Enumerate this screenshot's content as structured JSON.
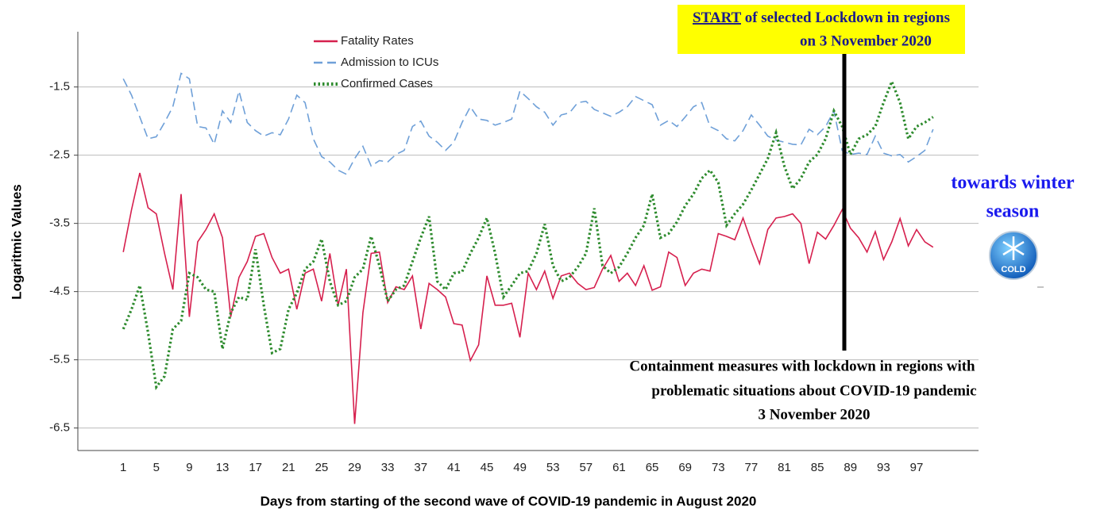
{
  "chart_data": {
    "type": "line",
    "xlabel": "Days from starting of the second wave of COVID-19 pandemic  in August 2020",
    "ylabel": "Logaritmic Values",
    "x": [
      1,
      2,
      3,
      4,
      5,
      6,
      7,
      8,
      9,
      10,
      11,
      12,
      13,
      14,
      15,
      16,
      17,
      18,
      19,
      20,
      21,
      22,
      23,
      24,
      25,
      26,
      27,
      28,
      29,
      30,
      31,
      32,
      33,
      34,
      35,
      36,
      37,
      38,
      39,
      40,
      41,
      42,
      43,
      44,
      45,
      46,
      47,
      48,
      49,
      50,
      51,
      52,
      53,
      54,
      55,
      56,
      57,
      58,
      59,
      60,
      61,
      62,
      63,
      64,
      65,
      66,
      67,
      68,
      69,
      70,
      71,
      72,
      73,
      74,
      75,
      76,
      77,
      78,
      79,
      80,
      81,
      82,
      83,
      84,
      85,
      86,
      87,
      88,
      89,
      90,
      91,
      92,
      93,
      94,
      95,
      96,
      97,
      98,
      99
    ],
    "xlim": [
      -4.5,
      104.5
    ],
    "xticks": [
      1,
      5,
      9,
      13,
      17,
      21,
      25,
      29,
      33,
      37,
      41,
      45,
      49,
      53,
      57,
      61,
      65,
      69,
      73,
      77,
      81,
      85,
      89,
      93,
      97
    ],
    "ylim": [
      -6.83,
      -0.69
    ],
    "yticks": [
      -1.5,
      -2.5,
      -3.5,
      -4.5,
      -5.5,
      -6.5
    ],
    "grid": true,
    "legend": "top-left",
    "series": [
      {
        "name": "Fatality Rates",
        "color": "#d6204e",
        "dash": "solid",
        "values": [
          -3.92,
          -3.3,
          -2.76,
          -3.27,
          -3.36,
          -3.94,
          -4.47,
          -3.07,
          -4.87,
          -3.77,
          -3.59,
          -3.36,
          -3.71,
          -4.87,
          -4.29,
          -4.06,
          -3.69,
          -3.65,
          -4.0,
          -4.23,
          -4.17,
          -4.76,
          -4.23,
          -4.17,
          -4.64,
          -3.94,
          -4.7,
          -4.17,
          -6.44,
          -4.81,
          -3.94,
          -3.92,
          -4.66,
          -4.43,
          -4.47,
          -4.27,
          -5.05,
          -4.38,
          -4.47,
          -4.58,
          -4.97,
          -4.99,
          -5.51,
          -5.28,
          -4.27,
          -4.7,
          -4.7,
          -4.67,
          -5.17,
          -4.23,
          -4.47,
          -4.2,
          -4.6,
          -4.27,
          -4.23,
          -4.38,
          -4.47,
          -4.44,
          -4.17,
          -3.97,
          -4.35,
          -4.23,
          -4.41,
          -4.12,
          -4.48,
          -4.43,
          -3.92,
          -4.0,
          -4.41,
          -4.23,
          -4.17,
          -4.2,
          -3.65,
          -3.69,
          -3.74,
          -3.42,
          -3.77,
          -4.09,
          -3.59,
          -3.42,
          -3.4,
          -3.36,
          -3.5,
          -4.09,
          -3.63,
          -3.73,
          -3.53,
          -3.3,
          -3.57,
          -3.71,
          -3.92,
          -3.62,
          -4.03,
          -3.77,
          -3.43,
          -3.83,
          -3.59,
          -3.77,
          -3.85
        ]
      },
      {
        "name": "Admission to ICUs",
        "color": "#6fa0d8",
        "dash": "dashed",
        "values": [
          -1.38,
          -1.62,
          -1.94,
          -2.26,
          -2.23,
          -2.02,
          -1.79,
          -1.3,
          -1.38,
          -2.08,
          -2.1,
          -2.34,
          -1.85,
          -2.02,
          -1.56,
          -2.02,
          -2.14,
          -2.22,
          -2.17,
          -2.2,
          -1.97,
          -1.62,
          -1.73,
          -2.26,
          -2.52,
          -2.6,
          -2.72,
          -2.78,
          -2.55,
          -2.37,
          -2.66,
          -2.58,
          -2.6,
          -2.49,
          -2.43,
          -2.08,
          -2.0,
          -2.22,
          -2.31,
          -2.43,
          -2.31,
          -2.02,
          -1.79,
          -1.97,
          -1.99,
          -2.06,
          -2.02,
          -1.97,
          -1.56,
          -1.67,
          -1.79,
          -1.87,
          -2.06,
          -1.91,
          -1.88,
          -1.73,
          -1.71,
          -1.83,
          -1.88,
          -1.93,
          -1.87,
          -1.79,
          -1.64,
          -1.7,
          -1.76,
          -2.06,
          -1.99,
          -2.08,
          -1.94,
          -1.79,
          -1.73,
          -2.08,
          -2.14,
          -2.26,
          -2.29,
          -2.14,
          -1.91,
          -2.06,
          -2.22,
          -2.28,
          -2.31,
          -2.34,
          -2.35,
          -2.12,
          -2.2,
          -2.08,
          -1.85,
          -2.43,
          -2.49,
          -2.47,
          -2.49,
          -2.22,
          -2.47,
          -2.51,
          -2.49,
          -2.6,
          -2.52,
          -2.43,
          -2.12
        ]
      },
      {
        "name": "Confirmed Cases",
        "color": "#2e8b2e",
        "dash": "dotted",
        "values": [
          -5.05,
          -4.76,
          -4.41,
          -5.1,
          -5.9,
          -5.74,
          -5.05,
          -4.93,
          -4.23,
          -4.29,
          -4.47,
          -4.5,
          -5.34,
          -4.81,
          -4.58,
          -4.62,
          -3.88,
          -4.7,
          -5.4,
          -5.34,
          -4.76,
          -4.52,
          -4.17,
          -4.06,
          -3.73,
          -4.35,
          -4.7,
          -4.64,
          -4.29,
          -4.17,
          -3.69,
          -4.12,
          -4.64,
          -4.47,
          -4.41,
          -4.06,
          -3.71,
          -3.4,
          -4.35,
          -4.47,
          -4.23,
          -4.21,
          -3.94,
          -3.71,
          -3.42,
          -3.94,
          -4.58,
          -4.41,
          -4.23,
          -4.2,
          -3.94,
          -3.51,
          -4.12,
          -4.35,
          -4.29,
          -4.14,
          -3.94,
          -3.28,
          -4.12,
          -4.23,
          -4.14,
          -3.94,
          -3.71,
          -3.53,
          -3.07,
          -3.71,
          -3.65,
          -3.48,
          -3.24,
          -3.07,
          -2.84,
          -2.72,
          -2.9,
          -3.53,
          -3.36,
          -3.22,
          -3.01,
          -2.78,
          -2.55,
          -2.17,
          -2.66,
          -2.99,
          -2.84,
          -2.6,
          -2.49,
          -2.26,
          -1.85,
          -2.08,
          -2.49,
          -2.26,
          -2.2,
          -2.08,
          -1.73,
          -1.42,
          -1.73,
          -2.26,
          -2.08,
          -2.02,
          -1.94
        ]
      }
    ],
    "annotations": {
      "lockdown_start": {
        "highlight": "START",
        "rest": " of selected Lockdown in regions",
        "line2": "on 3 November 2020"
      },
      "containment": [
        "Containment measures with lockdown in regions with",
        "problematic situations about COVID-19 pandemic",
        "3 November 2020"
      ],
      "season": [
        "towards winter",
        "season"
      ],
      "icon": "COLD"
    }
  }
}
